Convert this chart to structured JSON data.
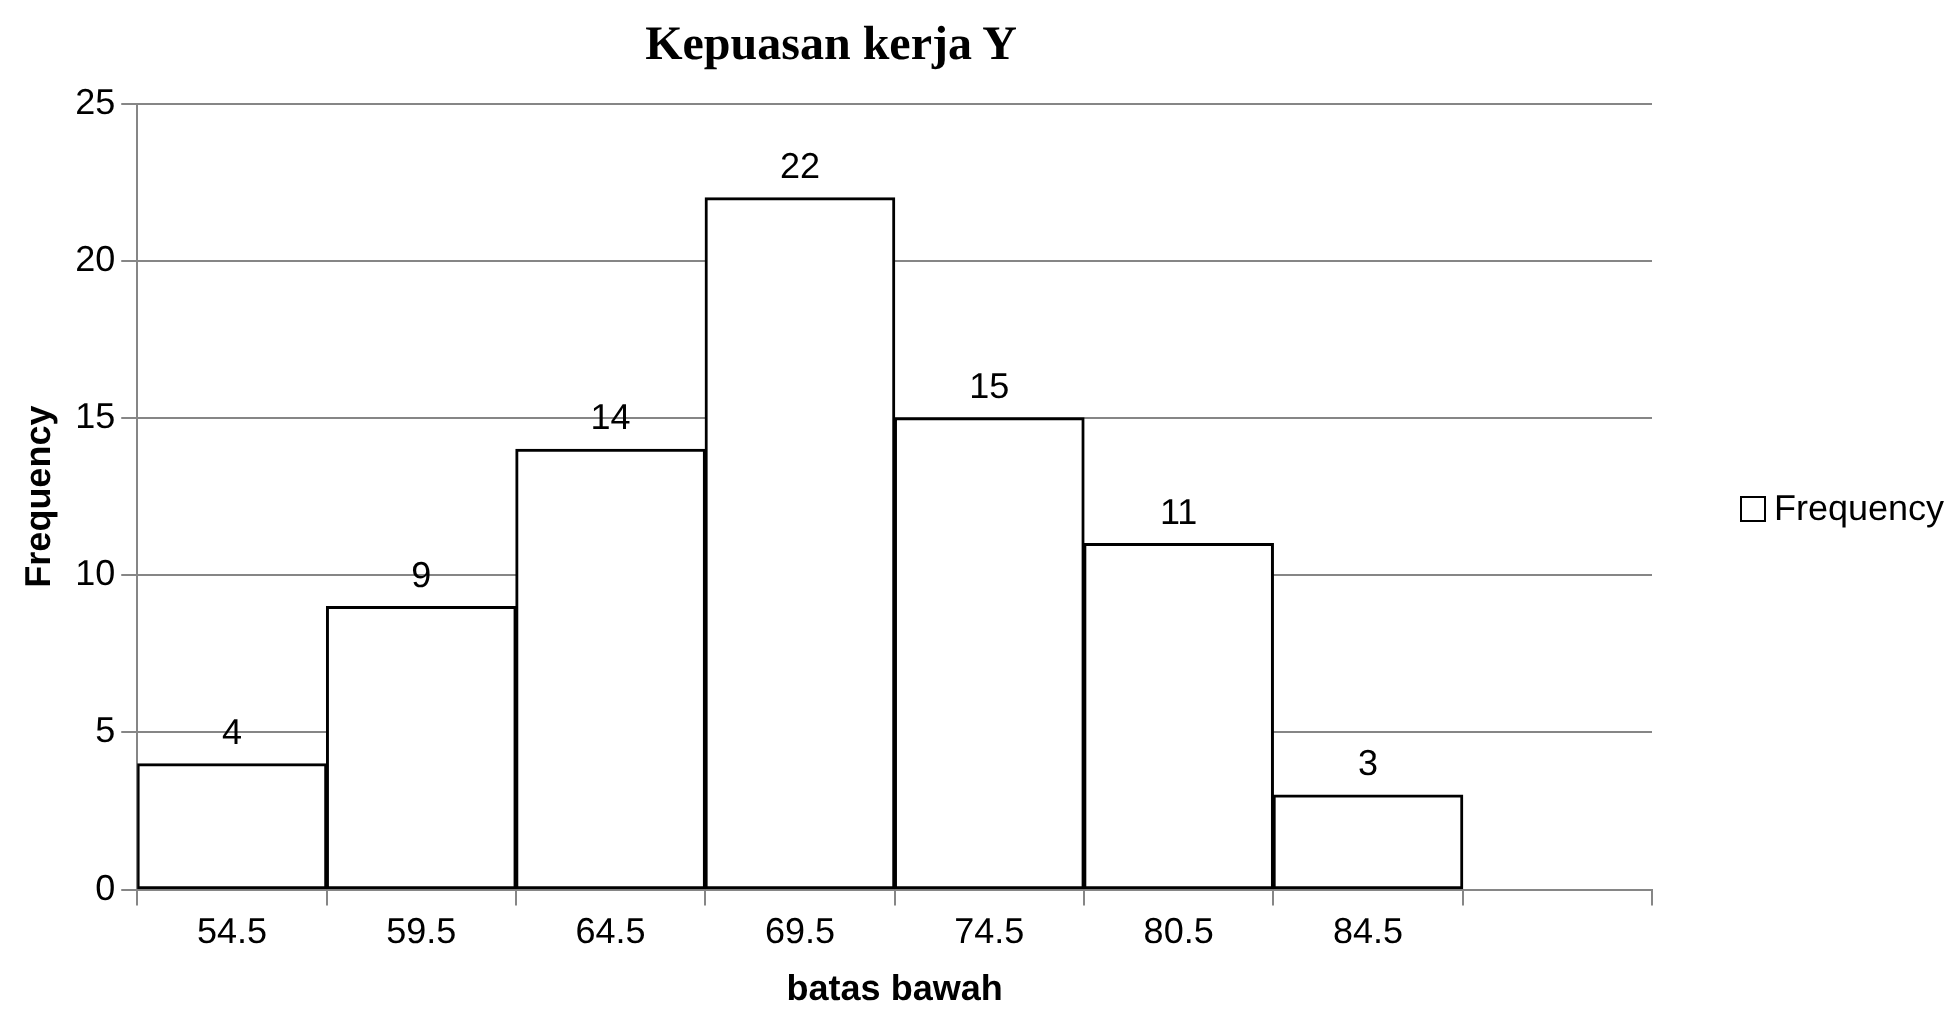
{
  "chart_data": {
    "type": "bar",
    "title": "Kepuasan kerja Y",
    "xlabel": "batas bawah",
    "ylabel": "Frequency",
    "categories": [
      "54.5",
      "59.5",
      "64.5",
      "69.5",
      "74.5",
      "80.5",
      "84.5",
      null
    ],
    "series": [
      {
        "name": "Frequency",
        "color": "#ffffff",
        "values": [
          4,
          9,
          14,
          22,
          15,
          11,
          3,
          null
        ]
      }
    ],
    "ylim": [
      0,
      25
    ],
    "yticks": [
      0,
      5,
      10,
      15,
      20,
      25
    ],
    "grid": "y",
    "legend": "right",
    "data_labels": true
  }
}
